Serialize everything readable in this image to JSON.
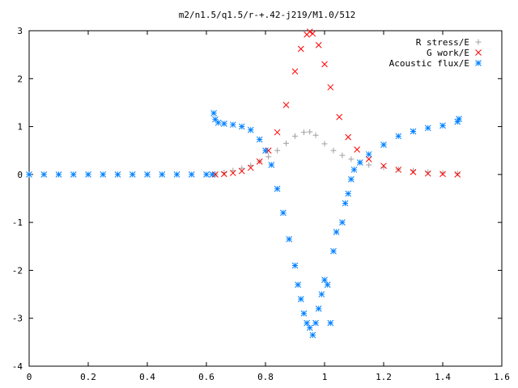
{
  "chart_data": {
    "type": "scatter",
    "title": "m2/n1.5/q1.5/r-+.42-j219/M1.0/512",
    "xlabel": "",
    "ylabel": "",
    "xlim": [
      0,
      1.6
    ],
    "ylim": [
      -4,
      3
    ],
    "x_ticks": [
      "0",
      "0.2",
      "0.4",
      "0.6",
      "0.8",
      "1",
      "1.2",
      "1.4",
      "1.6"
    ],
    "y_ticks": [
      "3",
      "2",
      "1",
      "0",
      "-1",
      "-2",
      "-3",
      "-4"
    ],
    "grid": false,
    "legend_position": "top-right",
    "series": [
      {
        "name": "R stress/E",
        "marker": "plus",
        "color": "#a0a0a0",
        "points": [
          [
            0.63,
            0.0
          ],
          [
            0.66,
            0.04
          ],
          [
            0.69,
            0.08
          ],
          [
            0.72,
            0.13
          ],
          [
            0.75,
            0.19
          ],
          [
            0.78,
            0.27
          ],
          [
            0.81,
            0.37
          ],
          [
            0.84,
            0.5
          ],
          [
            0.87,
            0.65
          ],
          [
            0.9,
            0.8
          ],
          [
            0.93,
            0.88
          ],
          [
            0.95,
            0.89
          ],
          [
            0.97,
            0.82
          ],
          [
            1.0,
            0.64
          ],
          [
            1.03,
            0.5
          ],
          [
            1.06,
            0.4
          ],
          [
            1.09,
            0.32
          ],
          [
            1.12,
            0.25
          ],
          [
            1.15,
            0.2
          ],
          [
            1.2,
            0.15
          ],
          [
            1.25,
            0.11
          ],
          [
            1.3,
            0.08
          ],
          [
            1.35,
            0.05
          ],
          [
            1.4,
            0.03
          ],
          [
            1.45,
            0.02
          ]
        ]
      },
      {
        "name": "G work/E",
        "marker": "cross",
        "color": "#ff0000",
        "points": [
          [
            0.63,
            0.0
          ],
          [
            0.66,
            0.01
          ],
          [
            0.69,
            0.03
          ],
          [
            0.72,
            0.07
          ],
          [
            0.75,
            0.14
          ],
          [
            0.78,
            0.27
          ],
          [
            0.81,
            0.5
          ],
          [
            0.84,
            0.88
          ],
          [
            0.87,
            1.45
          ],
          [
            0.9,
            2.15
          ],
          [
            0.92,
            2.62
          ],
          [
            0.94,
            2.92
          ],
          [
            0.95,
            2.98
          ],
          [
            0.96,
            2.94
          ],
          [
            0.98,
            2.7
          ],
          [
            1.0,
            2.3
          ],
          [
            1.02,
            1.82
          ],
          [
            1.05,
            1.2
          ],
          [
            1.08,
            0.78
          ],
          [
            1.11,
            0.52
          ],
          [
            1.15,
            0.32
          ],
          [
            1.2,
            0.18
          ],
          [
            1.25,
            0.1
          ],
          [
            1.3,
            0.05
          ],
          [
            1.35,
            0.02
          ],
          [
            1.4,
            0.01
          ],
          [
            1.45,
            0.0
          ]
        ]
      },
      {
        "name": "Acoustic flux/E",
        "marker": "star",
        "color": "#0080ff",
        "points": [
          [
            0.0,
            0.0
          ],
          [
            0.05,
            0.0
          ],
          [
            0.1,
            0.0
          ],
          [
            0.15,
            0.0
          ],
          [
            0.2,
            0.0
          ],
          [
            0.25,
            0.0
          ],
          [
            0.3,
            0.0
          ],
          [
            0.35,
            0.0
          ],
          [
            0.4,
            0.0
          ],
          [
            0.45,
            0.0
          ],
          [
            0.5,
            0.0
          ],
          [
            0.55,
            0.0
          ],
          [
            0.6,
            0.0
          ],
          [
            0.62,
            0.0
          ],
          [
            0.625,
            1.28
          ],
          [
            0.63,
            1.15
          ],
          [
            0.64,
            1.08
          ],
          [
            0.66,
            1.06
          ],
          [
            0.69,
            1.04
          ],
          [
            0.72,
            1.0
          ],
          [
            0.75,
            0.93
          ],
          [
            0.78,
            0.73
          ],
          [
            0.8,
            0.5
          ],
          [
            0.82,
            0.2
          ],
          [
            0.84,
            -0.3
          ],
          [
            0.86,
            -0.8
          ],
          [
            0.88,
            -1.35
          ],
          [
            0.9,
            -1.9
          ],
          [
            0.91,
            -2.3
          ],
          [
            0.92,
            -2.6
          ],
          [
            0.93,
            -2.9
          ],
          [
            0.94,
            -3.1
          ],
          [
            0.95,
            -3.2
          ],
          [
            0.96,
            -3.35
          ],
          [
            0.97,
            -3.1
          ],
          [
            0.98,
            -2.8
          ],
          [
            0.99,
            -2.5
          ],
          [
            1.0,
            -2.2
          ],
          [
            1.01,
            -2.3
          ],
          [
            1.02,
            -3.1
          ],
          [
            1.03,
            -1.6
          ],
          [
            1.04,
            -1.2
          ],
          [
            1.06,
            -1.0
          ],
          [
            1.07,
            -0.6
          ],
          [
            1.08,
            -0.4
          ],
          [
            1.09,
            -0.1
          ],
          [
            1.1,
            0.1
          ],
          [
            1.12,
            0.25
          ],
          [
            1.15,
            0.42
          ],
          [
            1.2,
            0.62
          ],
          [
            1.25,
            0.8
          ],
          [
            1.3,
            0.9
          ],
          [
            1.35,
            0.97
          ],
          [
            1.4,
            1.02
          ],
          [
            1.45,
            1.1
          ],
          [
            1.455,
            1.16
          ]
        ]
      }
    ]
  }
}
